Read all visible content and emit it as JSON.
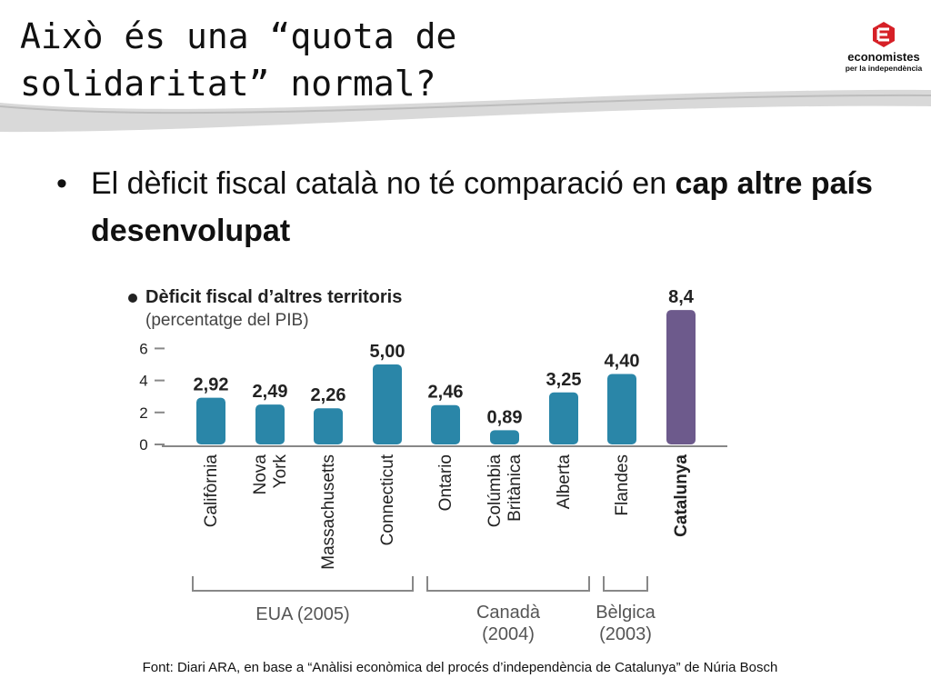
{
  "slide": {
    "title_line1": "Això és una “quota de",
    "title_line2": "solidaritat” normal?",
    "logo": {
      "name": "economistes",
      "tagline": "per la independència",
      "accent": "#d62027"
    },
    "bullet": {
      "marker": "•",
      "text_plain": "El dèficit fiscal català no té comparació en ",
      "text_bold": "cap altre país desenvolupat"
    },
    "source": "Font: Diari ARA, en base a “Anàlisi econòmica del procés d’independència de Catalunya” de Núria Bosch"
  },
  "chart_data": {
    "type": "bar",
    "title": "Dèficit fiscal d’altres territoris",
    "subtitle": "(percentatge del PIB)",
    "categories": [
      "Califòrnia",
      "Nova York",
      "Massachusetts",
      "Connecticut",
      "Ontario",
      "Colúmbia Britànica",
      "Alberta",
      "Flandes",
      "Catalunya"
    ],
    "values": [
      2.92,
      2.49,
      2.26,
      5.0,
      2.46,
      0.89,
      3.25,
      4.4,
      8.4
    ],
    "value_labels": [
      "2,92",
      "2,49",
      "2,26",
      "5,00",
      "2,46",
      "0,89",
      "3,25",
      "4,40",
      "8,4"
    ],
    "y_ticks": [
      "0",
      "2",
      "4",
      "6"
    ],
    "ylim": [
      0,
      8.4
    ],
    "groups": [
      {
        "label": "EUA (2005)",
        "start": 0,
        "end": 3
      },
      {
        "label": "Canadà (2004)",
        "start": 4,
        "end": 6
      },
      {
        "label": "Bèlgica (2003)",
        "start": 7,
        "end": 7
      }
    ],
    "colors": {
      "bar": "#2a86a8",
      "highlight": "#6d5a8c",
      "axis": "#888888",
      "text": "#222222"
    },
    "highlight_index": 8,
    "grid": false,
    "legend": "none"
  }
}
